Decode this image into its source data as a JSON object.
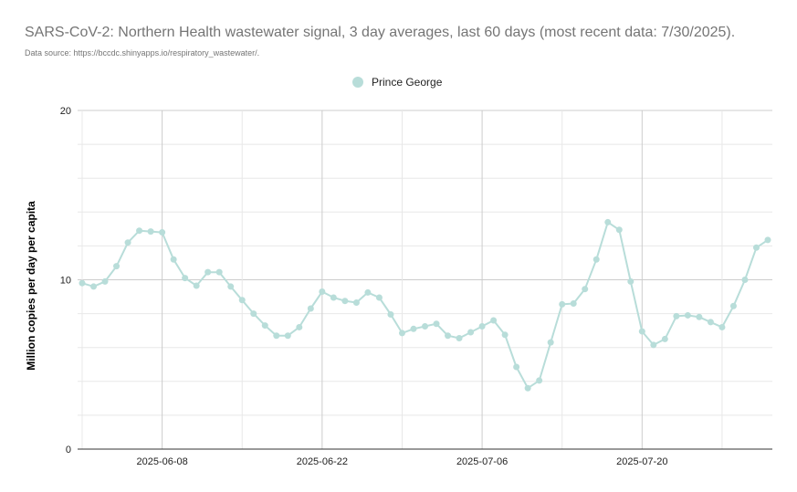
{
  "chart_data": {
    "type": "line",
    "title": "SARS-CoV-2: Northern Health wastewater signal, 3 day averages, last 60 days (most recent data: 7/30/2025).",
    "subtitle": "Data source: https://bccdc.shinyapps.io/respiratory_wastewater/.",
    "xlabel": "",
    "ylabel": "Million copies per day per capita",
    "ylim": [
      0,
      20
    ],
    "yticks": [
      "0",
      "10",
      "20"
    ],
    "xticks": [
      "2025-06-08",
      "2025-06-22",
      "2025-07-06",
      "2025-07-20"
    ],
    "grid": true,
    "legend_position": "top-center",
    "series_color": "#b8ddd9",
    "x_start": "2025-06-01",
    "series": [
      {
        "name": "Prince George",
        "values": [
          9.8,
          9.6,
          9.9,
          10.8,
          12.2,
          12.9,
          12.85,
          12.8,
          11.2,
          10.1,
          9.65,
          10.45,
          10.45,
          9.6,
          8.8,
          8.0,
          7.3,
          6.7,
          6.7,
          7.2,
          8.3,
          9.3,
          8.95,
          8.75,
          8.65,
          9.25,
          8.95,
          7.95,
          6.85,
          7.1,
          7.25,
          7.4,
          6.7,
          6.55,
          6.9,
          7.25,
          7.6,
          6.75,
          4.85,
          3.6,
          4.05,
          6.3,
          8.55,
          8.6,
          9.45,
          11.2,
          13.4,
          12.95,
          9.9,
          6.95,
          6.15,
          6.5,
          7.85,
          7.9,
          7.8,
          7.5,
          7.2,
          8.45,
          10.0,
          11.9,
          12.35
        ]
      }
    ]
  }
}
